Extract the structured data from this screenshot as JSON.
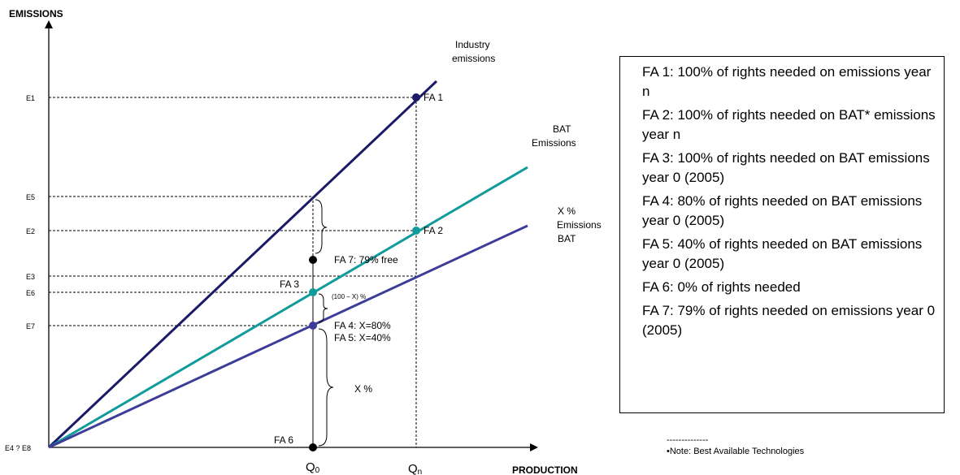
{
  "axes": {
    "y_label": "EMISSIONS",
    "x_label": "PRODUCTION"
  },
  "y_ticks": {
    "e1": "E1",
    "e5": "E5",
    "e2": "E2",
    "e3": "E3",
    "e6": "E6",
    "e7": "E7",
    "origin": "E4 ? E8"
  },
  "x_ticks": {
    "q0": "Q",
    "q0_sub": "0",
    "qn": "Q",
    "qn_sub": "n"
  },
  "lines": {
    "industry": {
      "label_1": "Industry",
      "label_2": "emissions",
      "color": "#1a1a66"
    },
    "bat": {
      "label_1": "BAT",
      "label_2": "Emissions",
      "color": "#119b9b"
    },
    "xbat": {
      "label_1": "X %",
      "label_2": "Emissions",
      "label_3": "BAT",
      "color": "#3d3d99"
    }
  },
  "points": {
    "fa1": "FA 1",
    "fa2": "FA 2",
    "fa3": "FA 3",
    "fa4": "FA 4: X=80%",
    "fa5": "FA 5: X=40%",
    "fa6": "FA 6",
    "fa7": "FA 7: 79% free"
  },
  "annotations": {
    "diff": "(100 – X) %",
    "xpct": "X %"
  },
  "legend": [
    "FA 1: 100% of rights needed on emissions year n",
    "FA 2: 100% of rights needed on BAT* emissions year n",
    "FA 3: 100% of rights needed on BAT emissions year 0 (2005)",
    "FA 4: 80% of rights needed on BAT emissions year 0 (2005)",
    "FA 5: 40% of rights needed on BAT emissions year 0 (2005)",
    "FA 6: 0% of rights needed",
    "FA 7: 79% of rights needed on emissions year 0 (2005)"
  ],
  "note": {
    "rule": "--------------",
    "text": "•Note: Best Available Technologies"
  }
}
